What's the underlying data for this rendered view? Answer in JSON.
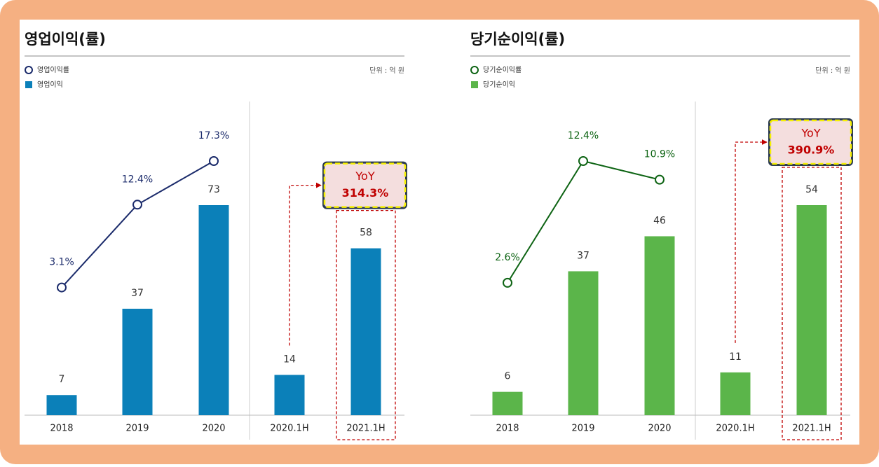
{
  "chart_data": [
    {
      "type": "combo",
      "title": "영업이익(률)",
      "unit": "단위 : 억 원",
      "categories": [
        "2018",
        "2019",
        "2020",
        "2020.1H",
        "2021.1H"
      ],
      "series": [
        {
          "name": "영업이익률",
          "type": "line",
          "color": "#1b2b6b",
          "values": [
            3.1,
            12.4,
            17.3,
            null,
            null
          ],
          "value_labels": [
            "3.1%",
            "12.4%",
            "17.3%",
            null,
            null
          ]
        },
        {
          "name": "영업이익",
          "type": "bar",
          "color": "#0b80b9",
          "values": [
            7,
            37,
            73,
            14,
            58
          ]
        }
      ],
      "annotation": [
        "YoY",
        "314.3%"
      ]
    },
    {
      "type": "combo",
      "title": "당기순이익(률)",
      "unit": "단위 : 억 원",
      "categories": [
        "2018",
        "2019",
        "2020",
        "2020.1H",
        "2021.1H"
      ],
      "series": [
        {
          "name": "당기순이익률",
          "type": "line",
          "color": "#0e6414",
          "values": [
            2.6,
            12.4,
            10.9,
            null,
            null
          ],
          "value_labels": [
            "2.6%",
            "12.4%",
            "10.9%",
            null,
            null
          ]
        },
        {
          "name": "당기순이익",
          "type": "bar",
          "color": "#5bb54a",
          "values": [
            6,
            37,
            46,
            11,
            54
          ]
        }
      ],
      "annotation": [
        "YoY",
        "390.9%"
      ]
    }
  ]
}
